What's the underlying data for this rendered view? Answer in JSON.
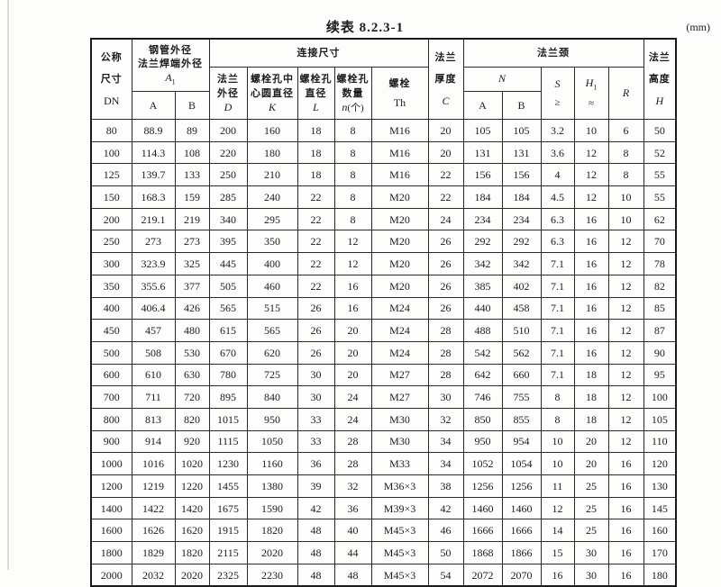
{
  "page": {
    "title": "续表 8.2.3-1",
    "unit": "(mm)"
  },
  "table": {
    "header": {
      "dn": {
        "l1": "公称",
        "l2": "尺寸",
        "sym": "DN"
      },
      "a1": {
        "l1": "钢管外径",
        "l2": "法兰焊端外径",
        "sym": "A",
        "sub": "1",
        "col_a": "A",
        "col_b": "B"
      },
      "connect": {
        "label": "连接尺寸"
      },
      "d": {
        "l1": "法兰",
        "l2": "外径",
        "sym": "D"
      },
      "k": {
        "l1": "螺栓孔中",
        "l2": "心圆直径",
        "sym": "K"
      },
      "l": {
        "l1": "螺栓孔",
        "l2": "直径",
        "sym": "L"
      },
      "n": {
        "l1": "螺栓孔",
        "l2": "数量",
        "sym": "n",
        "sym_suffix": "(个)"
      },
      "th": {
        "l1": "螺栓",
        "sym": "Th"
      },
      "c": {
        "l1": "法兰",
        "l2": "厚度",
        "sym": "C"
      },
      "neck": {
        "label": "法兰颈"
      },
      "n_group": {
        "sym": "N",
        "col_a": "A",
        "col_b": "B"
      },
      "s": {
        "sym": "S",
        "cond": "≥"
      },
      "h1": {
        "sym": "H",
        "sub": "1",
        "cond": "≈"
      },
      "r": {
        "sym": "R"
      },
      "h": {
        "l1": "法兰",
        "l2": "高度",
        "sym": "H"
      }
    },
    "rows": [
      [
        "80",
        "88.9",
        "89",
        "200",
        "160",
        "18",
        "8",
        "M16",
        "20",
        "105",
        "105",
        "3.2",
        "10",
        "6",
        "50"
      ],
      [
        "100",
        "114.3",
        "108",
        "220",
        "180",
        "18",
        "8",
        "M16",
        "20",
        "131",
        "131",
        "3.6",
        "12",
        "8",
        "52"
      ],
      [
        "125",
        "139.7",
        "133",
        "250",
        "210",
        "18",
        "8",
        "M16",
        "22",
        "156",
        "156",
        "4",
        "12",
        "8",
        "55"
      ],
      [
        "150",
        "168.3",
        "159",
        "285",
        "240",
        "22",
        "8",
        "M20",
        "22",
        "184",
        "184",
        "4.5",
        "12",
        "10",
        "55"
      ],
      [
        "200",
        "219.1",
        "219",
        "340",
        "295",
        "22",
        "8",
        "M20",
        "24",
        "234",
        "234",
        "6.3",
        "16",
        "10",
        "62"
      ],
      [
        "250",
        "273",
        "273",
        "395",
        "350",
        "22",
        "12",
        "M20",
        "26",
        "292",
        "292",
        "6.3",
        "16",
        "12",
        "70"
      ],
      [
        "300",
        "323.9",
        "325",
        "445",
        "400",
        "22",
        "12",
        "M20",
        "26",
        "342",
        "342",
        "7.1",
        "16",
        "12",
        "78"
      ],
      [
        "350",
        "355.6",
        "377",
        "505",
        "460",
        "22",
        "16",
        "M20",
        "26",
        "385",
        "402",
        "7.1",
        "16",
        "12",
        "82"
      ],
      [
        "400",
        "406.4",
        "426",
        "565",
        "515",
        "26",
        "16",
        "M24",
        "26",
        "440",
        "458",
        "7.1",
        "16",
        "12",
        "85"
      ],
      [
        "450",
        "457",
        "480",
        "615",
        "565",
        "26",
        "20",
        "M24",
        "28",
        "488",
        "510",
        "7.1",
        "16",
        "12",
        "87"
      ],
      [
        "500",
        "508",
        "530",
        "670",
        "620",
        "26",
        "20",
        "M24",
        "28",
        "542",
        "562",
        "7.1",
        "16",
        "12",
        "90"
      ],
      [
        "600",
        "610",
        "630",
        "780",
        "725",
        "30",
        "20",
        "M27",
        "28",
        "642",
        "660",
        "7.1",
        "18",
        "12",
        "95"
      ],
      [
        "700",
        "711",
        "720",
        "895",
        "840",
        "30",
        "24",
        "M27",
        "30",
        "746",
        "755",
        "8",
        "18",
        "12",
        "100"
      ],
      [
        "800",
        "813",
        "820",
        "1015",
        "950",
        "33",
        "24",
        "M30",
        "32",
        "850",
        "855",
        "8",
        "18",
        "12",
        "105"
      ],
      [
        "900",
        "914",
        "920",
        "1115",
        "1050",
        "33",
        "28",
        "M30",
        "34",
        "950",
        "954",
        "10",
        "20",
        "12",
        "110"
      ],
      [
        "1000",
        "1016",
        "1020",
        "1230",
        "1160",
        "36",
        "28",
        "M33",
        "34",
        "1052",
        "1054",
        "10",
        "20",
        "16",
        "120"
      ],
      [
        "1200",
        "1219",
        "1220",
        "1455",
        "1380",
        "39",
        "32",
        "M36×3",
        "38",
        "1256",
        "1256",
        "11",
        "25",
        "16",
        "130"
      ],
      [
        "1400",
        "1422",
        "1420",
        "1675",
        "1590",
        "42",
        "36",
        "M39×3",
        "42",
        "1460",
        "1460",
        "12",
        "25",
        "16",
        "145"
      ],
      [
        "1600",
        "1626",
        "1620",
        "1915",
        "1820",
        "48",
        "40",
        "M45×3",
        "46",
        "1666",
        "1666",
        "14",
        "25",
        "16",
        "160"
      ],
      [
        "1800",
        "1829",
        "1820",
        "2115",
        "2020",
        "48",
        "44",
        "M45×3",
        "50",
        "1868",
        "1866",
        "15",
        "30",
        "16",
        "170"
      ],
      [
        "2000",
        "2032",
        "2020",
        "2325",
        "2230",
        "48",
        "48",
        "M45×3",
        "54",
        "2072",
        "2070",
        "16",
        "30",
        "16",
        "180"
      ]
    ]
  }
}
